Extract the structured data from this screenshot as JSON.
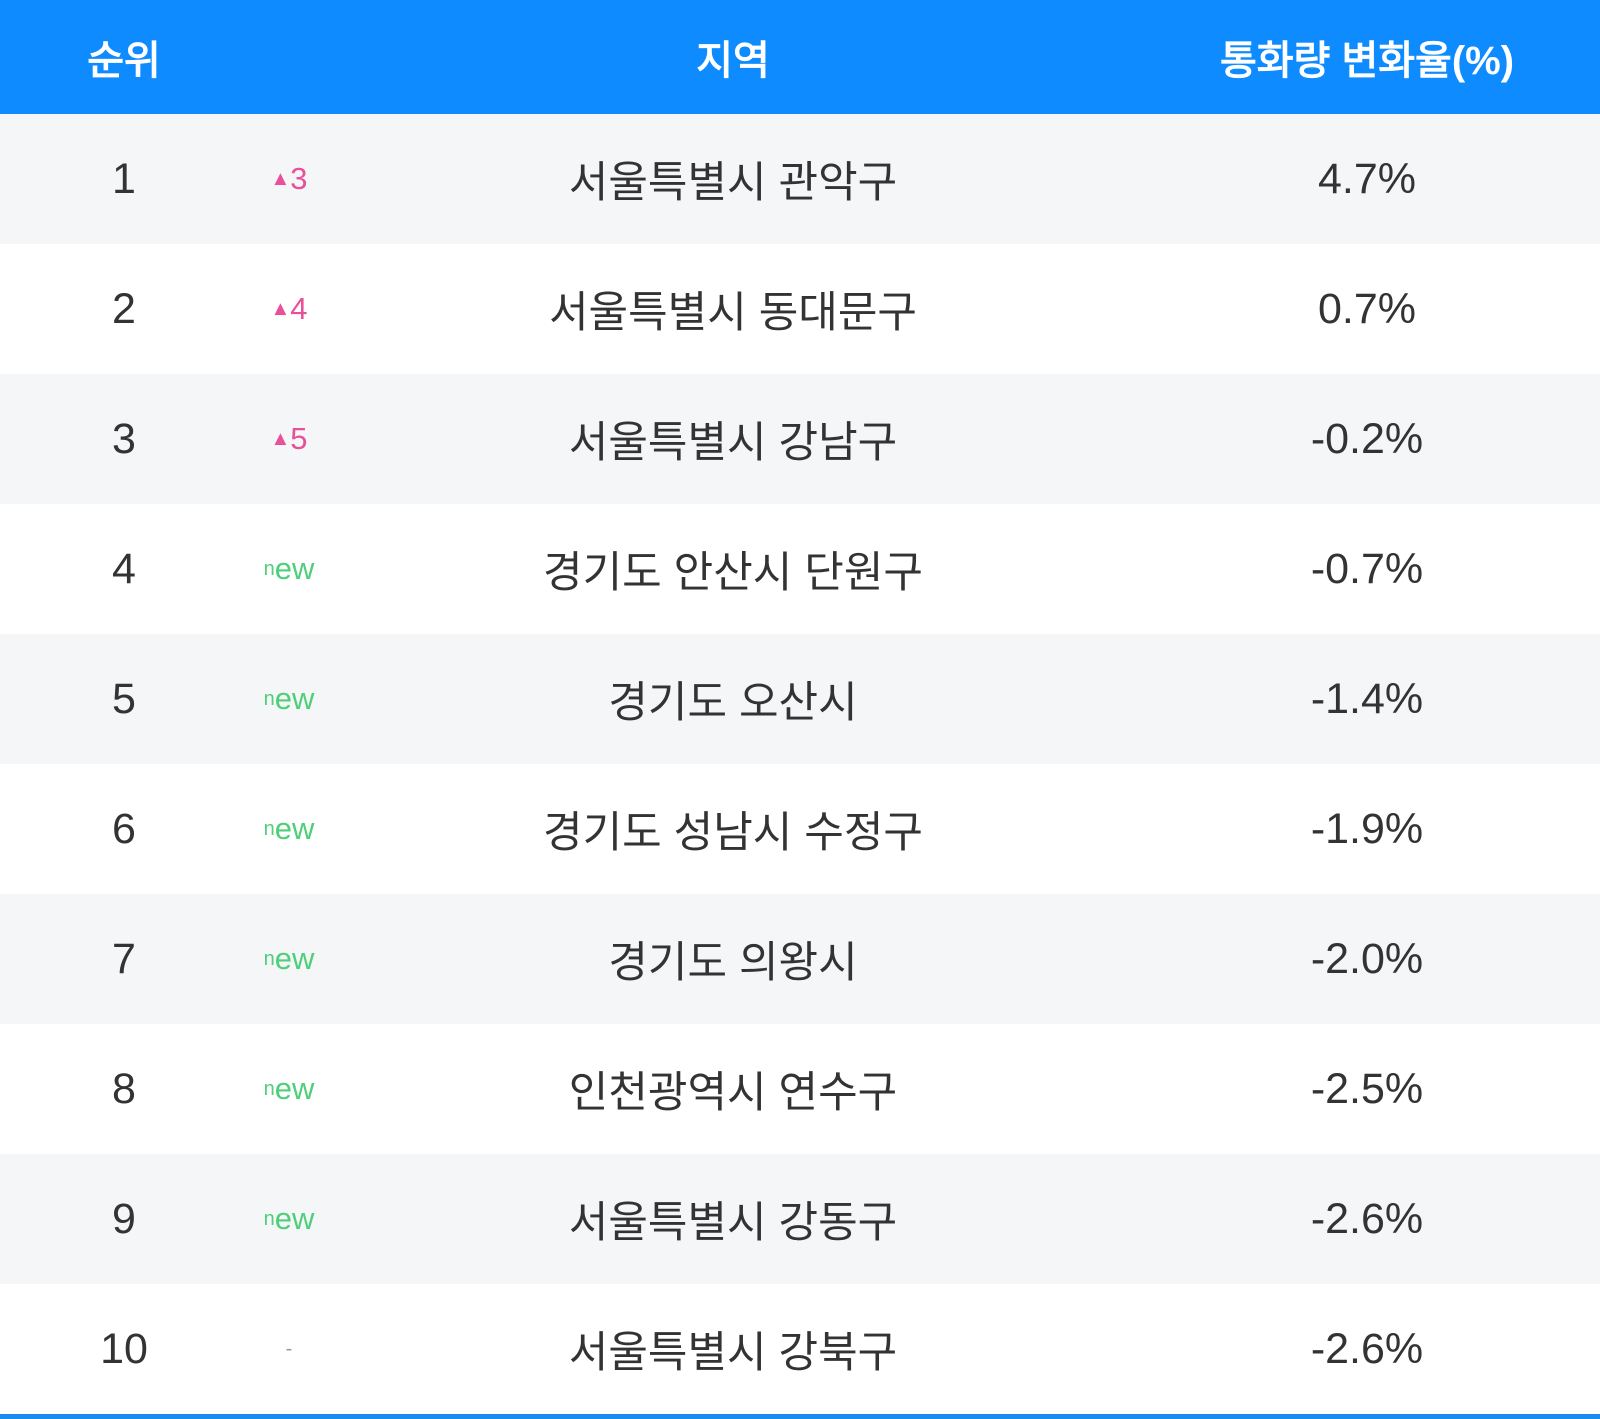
{
  "table": {
    "headers": [
      "순위",
      "지역",
      "통화량 변화율(%)"
    ],
    "rows": [
      {
        "rank": "1",
        "change": "▲3",
        "change_color": "#e8509a",
        "region": "서울특별시 관악구",
        "value": "4.7%"
      },
      {
        "rank": "2",
        "change": "▲4",
        "change_color": "#e8509a",
        "region": "서울특별시 동대문구",
        "value": "0.7%"
      },
      {
        "rank": "3",
        "change": "▲5",
        "change_color": "#e8509a",
        "region": "서울특별시 강남구",
        "value": "-0.2%"
      },
      {
        "rank": "4",
        "change": "new",
        "change_color": "#4fcf7a",
        "region": "경기도 안산시 단원구",
        "value": "-0.7%"
      },
      {
        "rank": "5",
        "change": "new",
        "change_color": "#4fcf7a",
        "region": "경기도 오산시",
        "value": "-1.4%"
      },
      {
        "rank": "6",
        "change": "new",
        "change_color": "#4fcf7a",
        "region": "경기도 성남시 수정구",
        "value": "-1.9%"
      },
      {
        "rank": "7",
        "change": "new",
        "change_color": "#4fcf7a",
        "region": "경기도 의왕시",
        "value": "-2.0%"
      },
      {
        "rank": "8",
        "change": "new",
        "change_color": "#4fcf7a",
        "region": "인천광역시 연수구",
        "value": "-2.5%"
      },
      {
        "rank": "9",
        "change": "new",
        "change_color": "#4fcf7a",
        "region": "서울특별시 강동구",
        "value": "-2.6%"
      },
      {
        "rank": "10",
        "change": "-",
        "change_color": "#999999",
        "region": "서울특별시 강북구",
        "value": "-2.6%"
      }
    ]
  }
}
